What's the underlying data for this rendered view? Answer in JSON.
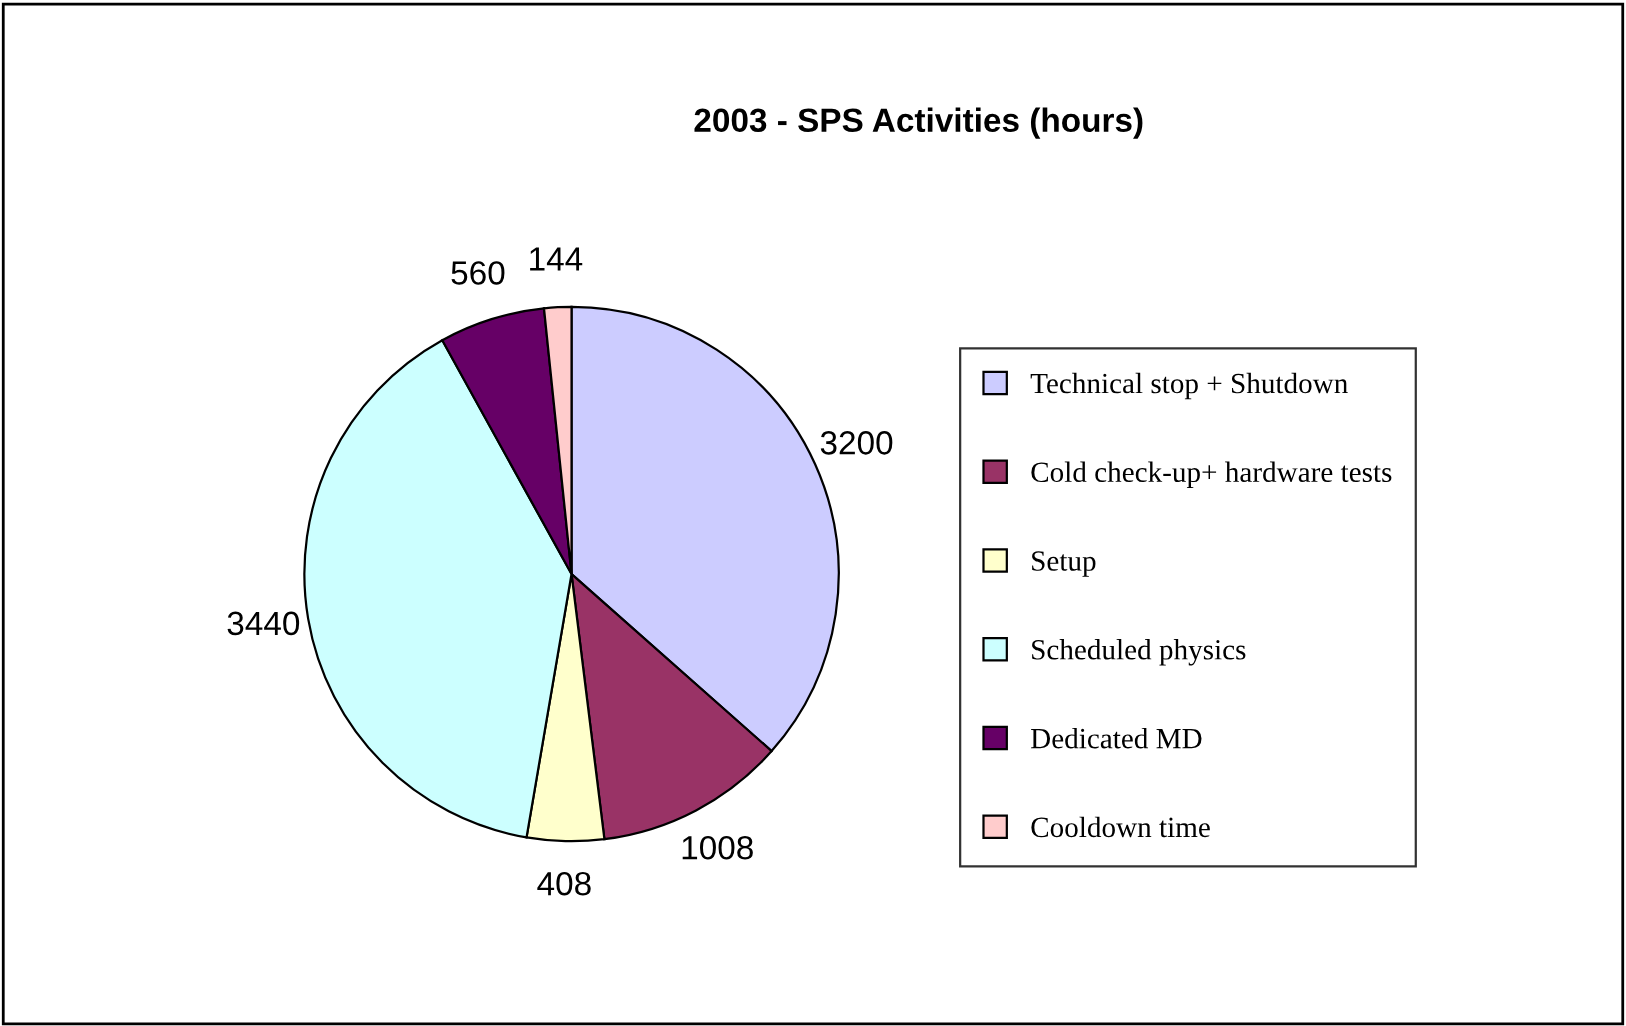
{
  "chart_data": {
    "type": "pie",
    "title": "2003 - SPS Activities (hours)",
    "categories": [
      "Technical stop + Shutdown",
      "Cold check-up+ hardware tests",
      "Setup",
      "Scheduled physics",
      "Dedicated MD",
      "Cooldown time"
    ],
    "values": [
      3200,
      1008,
      408,
      3440,
      560,
      144
    ],
    "colors": [
      "#ccccff",
      "#993366",
      "#ffffcc",
      "#ccffff",
      "#660066",
      "#ffcccc"
    ],
    "data_labels": true,
    "legend": "right"
  }
}
